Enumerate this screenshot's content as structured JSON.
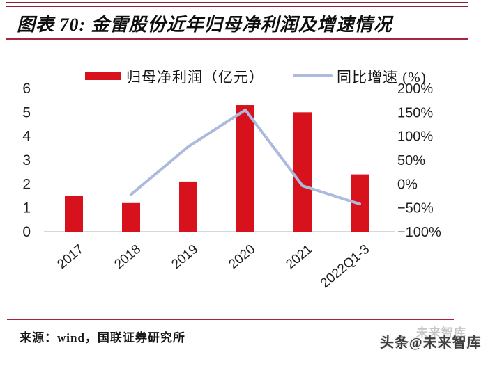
{
  "header": {
    "title": "图表 70: 金雷股份近年归母净利润及增速情况"
  },
  "footer": {
    "source": "来源：wind，国联证券研究所",
    "watermark": "头条@未来智库",
    "watermark_ghost": "未来智库"
  },
  "colors": {
    "bar": "#d8121c",
    "line": "#abbadd",
    "rule": "#a62642",
    "axis_line": "#c9ccd1",
    "tick_text": "#1e1e1e"
  },
  "chart_data": {
    "type": "combo-bar-line",
    "title": "金雷股份近年归母净利润及增速情况",
    "categories": [
      "2017",
      "2018",
      "2019",
      "2020",
      "2021",
      "2022Q1-3"
    ],
    "series": [
      {
        "name": "归母净利润（亿元）",
        "type": "bar",
        "axis": "left",
        "values": [
          1.5,
          1.2,
          2.1,
          5.3,
          5.0,
          2.4
        ]
      },
      {
        "name": "同比增速 (%)",
        "type": "line",
        "axis": "right",
        "values": [
          null,
          -22,
          78,
          155,
          -4,
          -42
        ]
      }
    ],
    "left_axis": {
      "min": 0,
      "max": 6,
      "ticks": [
        6,
        5,
        4,
        3,
        2,
        1,
        0
      ]
    },
    "right_axis": {
      "min": -100,
      "max": 200,
      "ticks": [
        {
          "label": "200%",
          "value": 200
        },
        {
          "label": "150%",
          "value": 150
        },
        {
          "label": "100%",
          "value": 100
        },
        {
          "label": "50%",
          "value": 50
        },
        {
          "label": "0%",
          "value": 0
        },
        {
          "label": "−50%",
          "value": -50
        },
        {
          "label": "−100%",
          "value": -100
        }
      ]
    },
    "legend_position": "top",
    "grid": false
  }
}
